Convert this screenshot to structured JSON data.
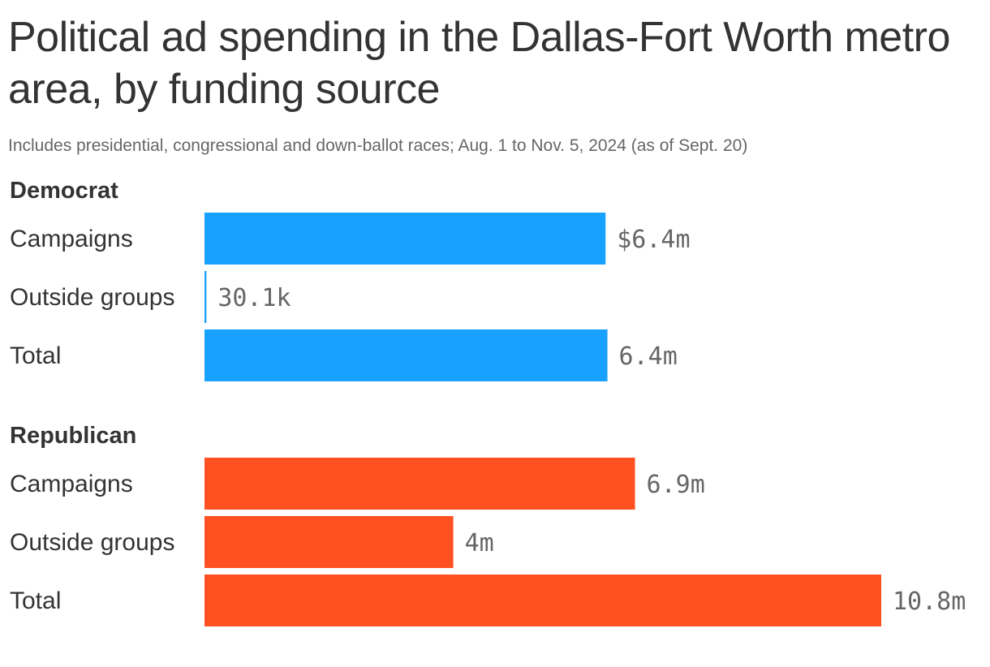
{
  "title": "Political ad spending in the Dallas-Fort Worth metro area, by funding source",
  "subtitle": "Includes presidential, congressional and down-ballot races; Aug. 1 to Nov. 5, 2024 (as of Sept. 20)",
  "chart_data": {
    "type": "bar",
    "orientation": "horizontal",
    "title": "Political ad spending in the Dallas-Fort Worth metro area, by funding source",
    "subtitle": "Includes presidential, congressional and down-ballot races; Aug. 1 to Nov. 5, 2024 (as of Sept. 20)",
    "xlim": [
      0,
      10.8
    ],
    "unit": "million USD",
    "grid": false,
    "groups": [
      {
        "name": "Democrat",
        "color": "#18a1ff",
        "bars": [
          {
            "category": "Campaigns",
            "value": 6.4,
            "label": "$6.4m"
          },
          {
            "category": "Outside groups",
            "value": 0.0301,
            "label": "30.1k"
          },
          {
            "category": "Total",
            "value": 6.43,
            "label": "6.4m"
          }
        ]
      },
      {
        "name": "Republican",
        "color": "#ff5022",
        "bars": [
          {
            "category": "Campaigns",
            "value": 6.87,
            "label": "6.9m"
          },
          {
            "category": "Outside groups",
            "value": 3.97,
            "label": "4m"
          },
          {
            "category": "Total",
            "value": 10.8,
            "label": "10.8m"
          }
        ]
      }
    ]
  }
}
